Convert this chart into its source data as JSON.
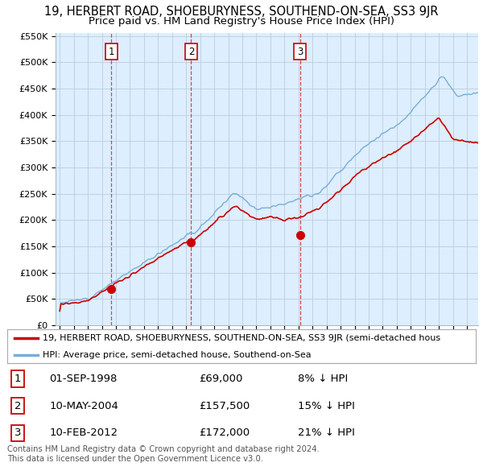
{
  "title": "19, HERBERT ROAD, SHOEBURYNESS, SOUTHEND-ON-SEA, SS3 9JR",
  "subtitle": "Price paid vs. HM Land Registry's House Price Index (HPI)",
  "ylim": [
    0,
    550000
  ],
  "yticks": [
    0,
    50000,
    100000,
    150000,
    200000,
    250000,
    300000,
    350000,
    400000,
    450000,
    500000,
    550000
  ],
  "ytick_labels": [
    "£0",
    "£50K",
    "£100K",
    "£150K",
    "£200K",
    "£250K",
    "£300K",
    "£350K",
    "£400K",
    "£450K",
    "£500K",
    "£550K"
  ],
  "property_color": "#cc0000",
  "hpi_color": "#7aadd4",
  "chart_bg": "#ddeeff",
  "legend_property": "19, HERBERT ROAD, SHOEBURYNESS, SOUTHEND-ON-SEA, SS3 9JR (semi-detached hous",
  "legend_hpi": "HPI: Average price, semi-detached house, Southend-on-Sea",
  "table_rows": [
    {
      "label": "1",
      "date": "01-SEP-1998",
      "price": "£69,000",
      "hpi": "8% ↓ HPI"
    },
    {
      "label": "2",
      "date": "10-MAY-2004",
      "price": "£157,500",
      "hpi": "15% ↓ HPI"
    },
    {
      "label": "3",
      "date": "10-FEB-2012",
      "price": "£172,000",
      "hpi": "21% ↓ HPI"
    }
  ],
  "footer": "Contains HM Land Registry data © Crown copyright and database right 2024.\nThis data is licensed under the Open Government Licence v3.0.",
  "background_color": "#ffffff",
  "grid_color": "#bbccdd",
  "title_fontsize": 10.5,
  "subtitle_fontsize": 9.5,
  "sale_year_nums": [
    1998.67,
    2004.36,
    2012.11
  ],
  "sale_prices": [
    69000,
    157500,
    172000
  ],
  "sale_labels": [
    "1",
    "2",
    "3"
  ]
}
